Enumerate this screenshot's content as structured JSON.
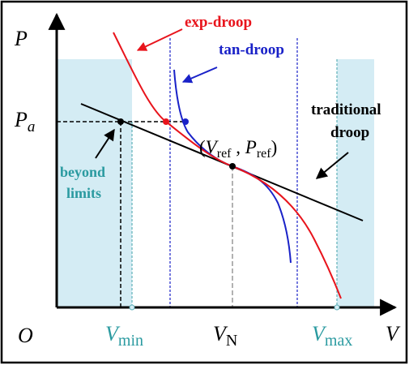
{
  "axes": {
    "y_label": "P",
    "x_label": "V",
    "origin_label": "O",
    "pa_label": "P",
    "pa_subscript": "a"
  },
  "ticks": {
    "vmin_main": "V",
    "vmin_sub": "min",
    "vn_main": "V",
    "vn_sub": "N",
    "vmax_main": "V",
    "vmax_sub": "max"
  },
  "curves": {
    "exp_label": "exp-droop",
    "tan_label": "tan-droop",
    "traditional_line1": "traditional",
    "traditional_line2": "droop"
  },
  "annotations": {
    "ref_open": "(",
    "ref_v": "V",
    "ref_v_sub": "ref",
    "ref_comma": " , ",
    "ref_p": "P",
    "ref_p_sub": "ref",
    "ref_close": ")",
    "beyond_line1": "beyond",
    "beyond_line2": "limits"
  },
  "colors": {
    "exp": "#e8141c",
    "tan": "#1a22c8",
    "traditional": "#000000",
    "limit_region": "#d4ecf4",
    "limit_text": "#2a9aa0",
    "frame": "#000000"
  }
}
